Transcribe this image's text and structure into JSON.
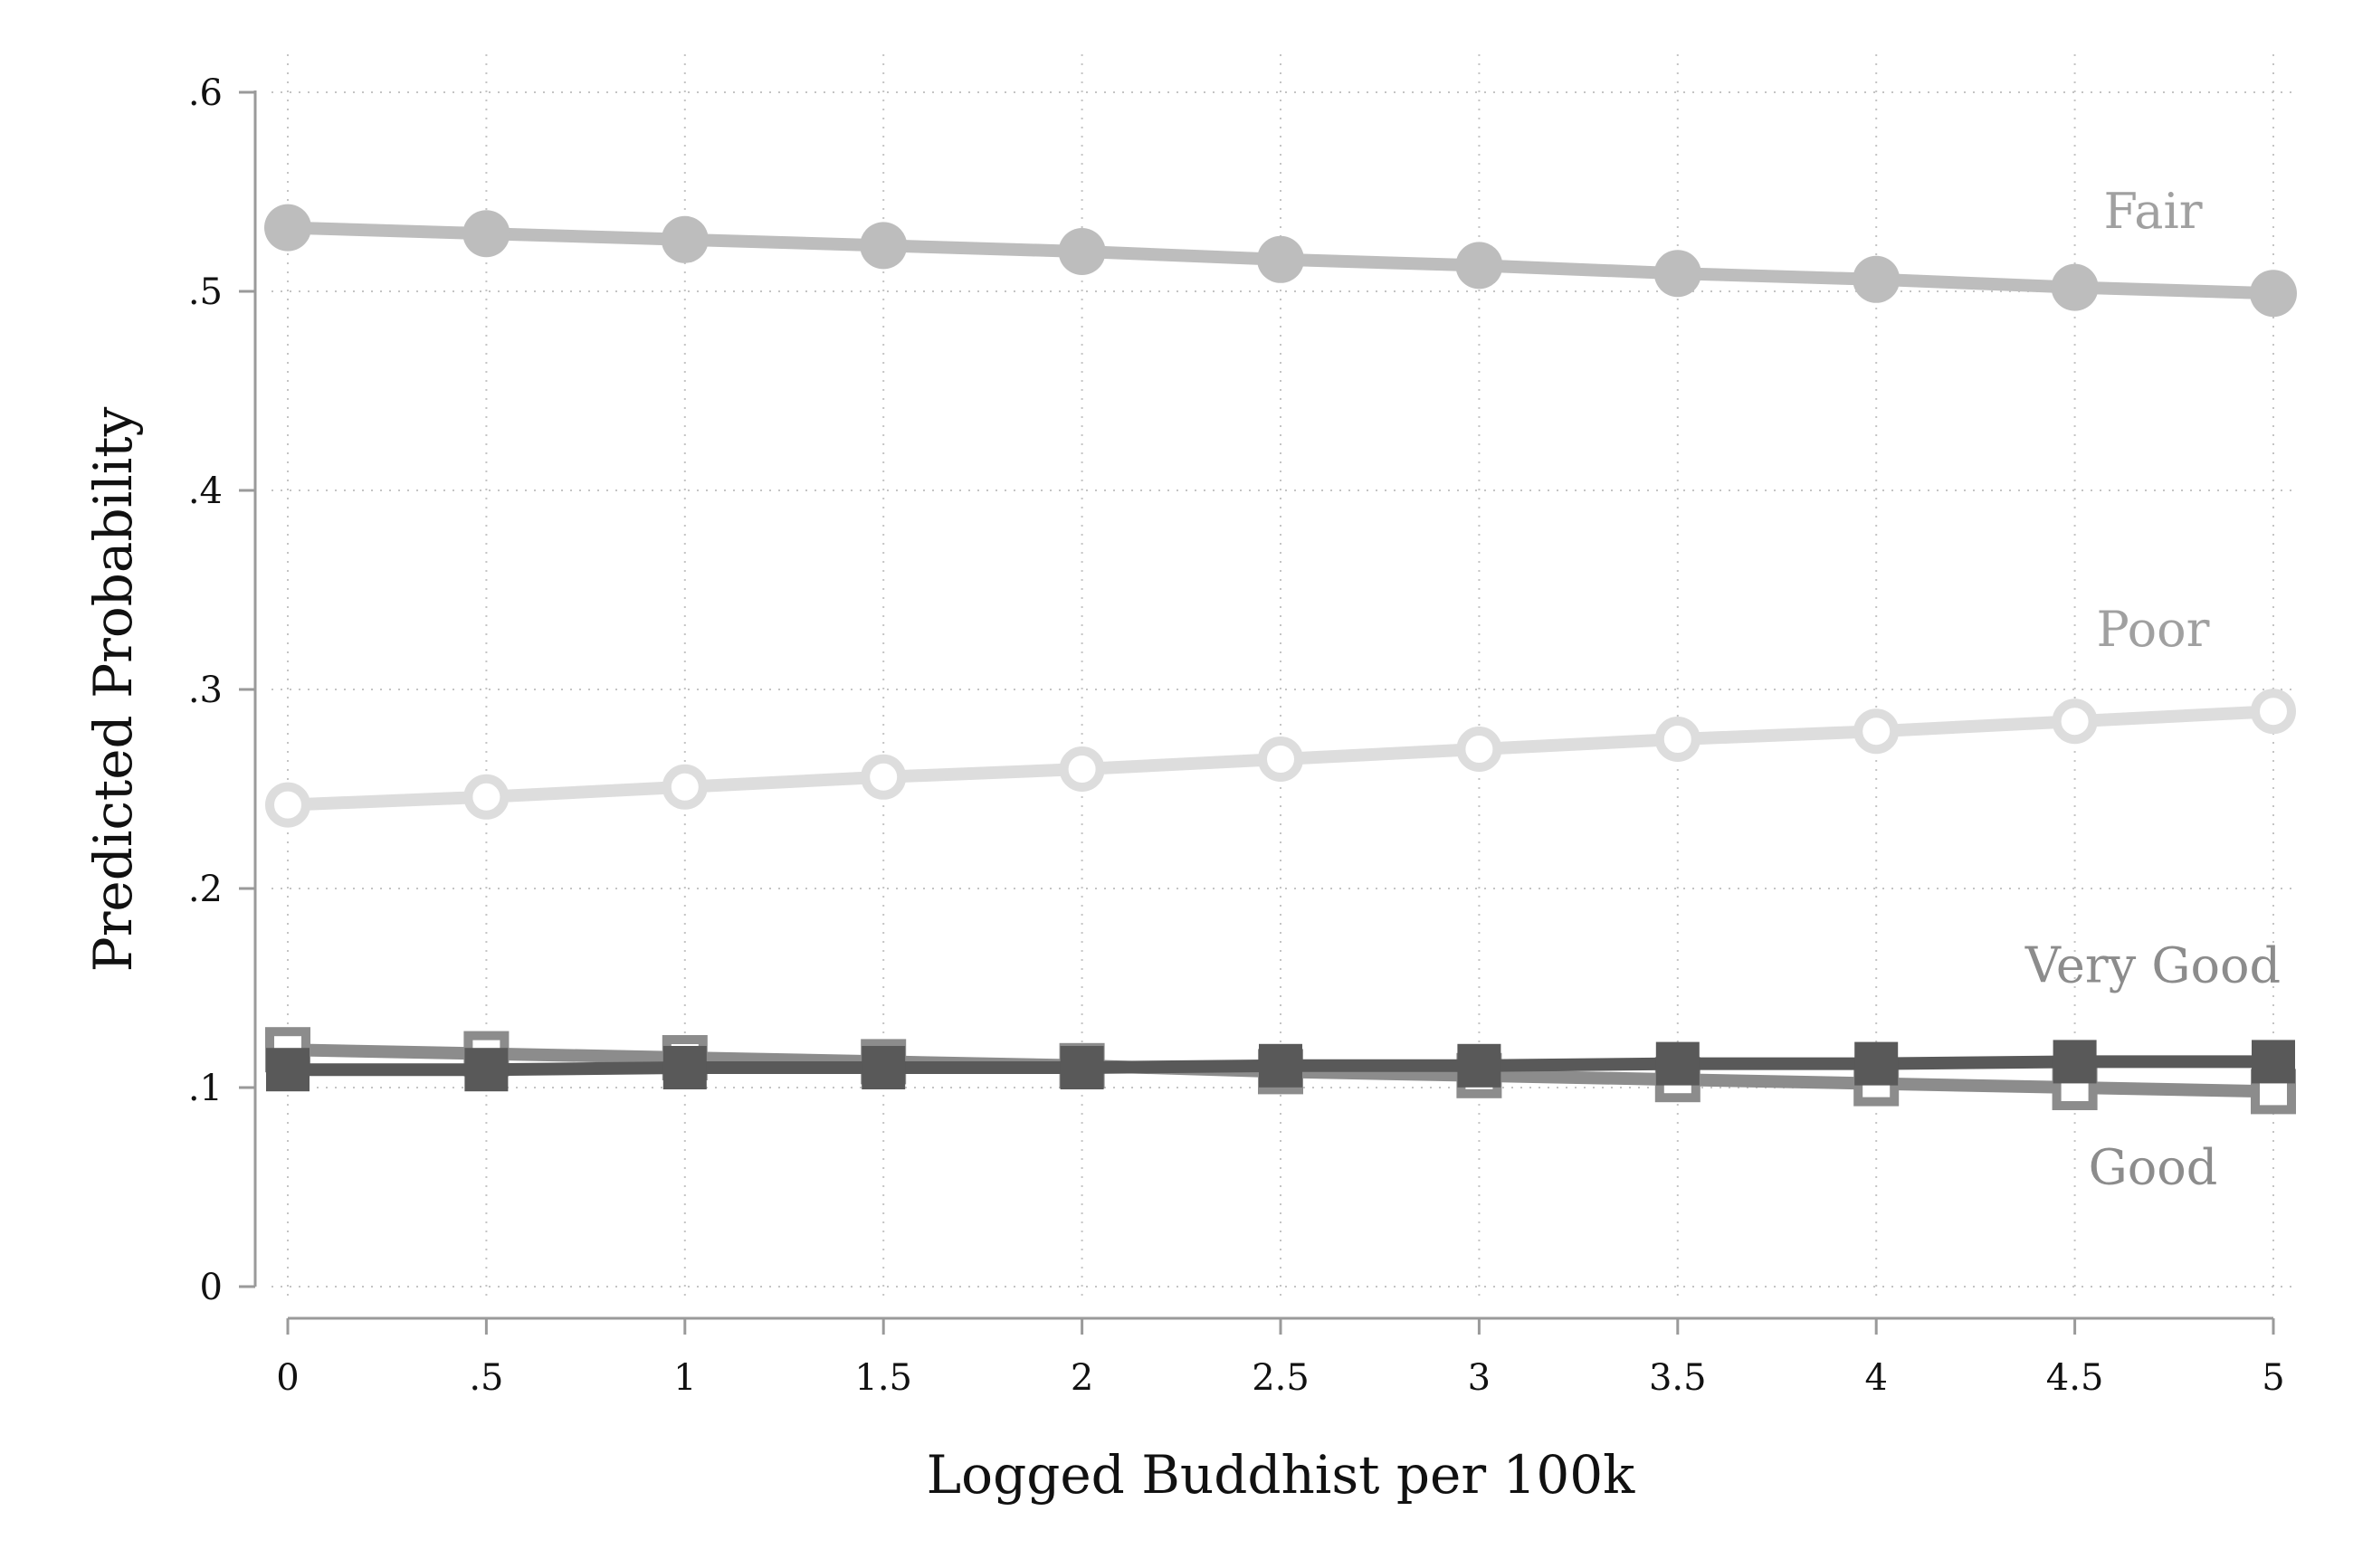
{
  "chart_data": {
    "type": "line",
    "title": "",
    "xlabel": "Logged Buddhist per 100k",
    "ylabel": "Predicted Probability",
    "x": [
      0,
      0.5,
      1,
      1.5,
      2,
      2.5,
      3,
      3.5,
      4,
      4.5,
      5
    ],
    "xlim": [
      0,
      5
    ],
    "ylim": [
      0,
      0.6
    ],
    "x_ticks": [
      0,
      0.5,
      1,
      1.5,
      2,
      2.5,
      3,
      3.5,
      4,
      4.5,
      5
    ],
    "x_tick_labels": [
      "0",
      ".5",
      "1",
      "1.5",
      "2",
      "2.5",
      "3",
      "3.5",
      "4",
      "4.5",
      "5"
    ],
    "y_ticks": [
      0,
      0.1,
      0.2,
      0.3,
      0.4,
      0.5,
      0.6
    ],
    "y_tick_labels": [
      "0",
      ".1",
      ".2",
      ".3",
      ".4",
      ".5",
      ".6"
    ],
    "grid": true,
    "legend": "labels at line ends",
    "series": [
      {
        "name": "Fair",
        "values": [
          0.532,
          0.529,
          0.526,
          0.523,
          0.52,
          0.516,
          0.513,
          0.509,
          0.506,
          0.502,
          0.499
        ],
        "color": "#bdbdbd",
        "label_color": "#a0a0a0",
        "marker": "filled-circle"
      },
      {
        "name": "Poor",
        "values": [
          0.242,
          0.246,
          0.251,
          0.256,
          0.26,
          0.265,
          0.27,
          0.275,
          0.279,
          0.284,
          0.289
        ],
        "color": "#dddddd",
        "label_color": "#a0a0a0",
        "marker": "hollow-circle"
      },
      {
        "name": "Good",
        "values": [
          0.119,
          0.117,
          0.115,
          0.113,
          0.111,
          0.108,
          0.106,
          0.104,
          0.102,
          0.1,
          0.098
        ],
        "color": "#8c8c8c",
        "label_color": "#8c8c8c",
        "marker": "hollow-square"
      },
      {
        "name": "Very Good",
        "values": [
          0.109,
          0.109,
          0.11,
          0.11,
          0.11,
          0.111,
          0.111,
          0.112,
          0.112,
          0.113,
          0.113
        ],
        "color": "#595959",
        "label_color": "#8c8c8c",
        "marker": "filled-square"
      }
    ]
  }
}
